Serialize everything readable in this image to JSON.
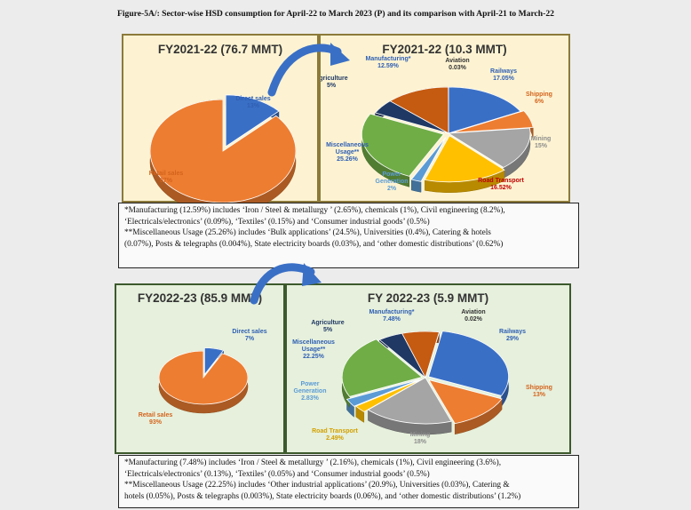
{
  "figure_title": "Figure-5A/: Sector-wise HSD consumption for April-22 to March 2023 (P) and its comparison with April-21 to March-22",
  "colors": {
    "direct_sales": "#3a6fc6",
    "retail_sales": "#ed7d31",
    "railways": "#3a6fc6",
    "shipping": "#ed7d31",
    "mining": "#a5a5a5",
    "road_transport": "#ffc000",
    "power_generation": "#5b9bd5",
    "miscellaneous": "#70ad47",
    "agriculture": "#1f3864",
    "manufacturing": "#c55a11",
    "aviation": "#f2f2f2"
  },
  "chart_data": [
    {
      "type": "pie",
      "title": "FY2021-22 (76.7 MMT)",
      "slices": [
        {
          "key": "direct_sales",
          "name": "Direct sales",
          "value_label": "13%",
          "value": 13
        },
        {
          "key": "retail_sales",
          "name": "Retail sales",
          "value_label": "87%",
          "value": 87
        }
      ]
    },
    {
      "type": "pie",
      "title": "FY2021-22 (10.3 MMT)",
      "slices": [
        {
          "key": "railways",
          "name": "Railways",
          "value_label": "17.05%",
          "value": 17.05
        },
        {
          "key": "shipping",
          "name": "Shipping",
          "value_label": "6%",
          "value": 6
        },
        {
          "key": "mining",
          "name": "Mining",
          "value_label": "15%",
          "value": 15
        },
        {
          "key": "road_transport",
          "name": "Road Transport",
          "value_label": "16.52%",
          "value": 16.52
        },
        {
          "key": "power_generation",
          "name": "Power Generation",
          "value_label": "2%",
          "value": 2
        },
        {
          "key": "miscellaneous",
          "name": "Miscellaneous Usage**",
          "value_label": "25.26%",
          "value": 25.26
        },
        {
          "key": "agriculture",
          "name": "Agriculture",
          "value_label": "5%",
          "value": 5
        },
        {
          "key": "manufacturing",
          "name": "Manufacturing*",
          "value_label": "12.59%",
          "value": 12.59
        },
        {
          "key": "aviation",
          "name": "Aviation",
          "value_label": "0.03%",
          "value": 0.03
        }
      ]
    },
    {
      "type": "pie",
      "title": "FY2022-23 (85.9 MMT)",
      "slices": [
        {
          "key": "direct_sales",
          "name": "Direct sales",
          "value_label": "7%",
          "value": 7
        },
        {
          "key": "retail_sales",
          "name": "Retail sales",
          "value_label": "93%",
          "value": 93
        }
      ]
    },
    {
      "type": "pie",
      "title": "FY 2022-23 (5.9 MMT)",
      "slices": [
        {
          "key": "railways",
          "name": "Railways",
          "value_label": "29%",
          "value": 29
        },
        {
          "key": "shipping",
          "name": "Shipping",
          "value_label": "13%",
          "value": 13
        },
        {
          "key": "mining",
          "name": "Mining",
          "value_label": "18%",
          "value": 18
        },
        {
          "key": "road_transport",
          "name": "Road Transport",
          "value_label": "2.49%",
          "value": 2.49
        },
        {
          "key": "power_generation",
          "name": "Power Generation",
          "value_label": "2.83%",
          "value": 2.83
        },
        {
          "key": "miscellaneous",
          "name": "Miscellaneous Usage**",
          "value_label": "22.25%",
          "value": 22.25
        },
        {
          "key": "agriculture",
          "name": "Agriculture",
          "value_label": "5%",
          "value": 5
        },
        {
          "key": "manufacturing",
          "name": "Manufacturing*",
          "value_label": "7.48%",
          "value": 7.48
        },
        {
          "key": "aviation",
          "name": "Aviation",
          "value_label": "0.02%",
          "value": 0.02
        }
      ]
    }
  ],
  "notes_2021": [
    "*Manufacturing (12.59%)  includes ‘Iron / Steel & metallurgy ’ (2.65%), chemicals (1%), Civil engineering (8.2%),",
    "‘Electricals/electronics’ (0.09%), ‘Textiles’ (0.15%) and ‘Consumer industrial goods’ (0.5%)",
    "**Miscellaneous Usage (25.26%) includes ‘Bulk applications’ (24.5%),  Universities (0.4%), Catering & hotels",
    "(0.07%), Posts & telegraphs (0.004%), State electricity boards (0.03%), and ‘other domestic distributions’ (0.62%)"
  ],
  "notes_2022": [
    "*Manufacturing (7.48%)  includes ‘Iron / Steel & metallurgy ’ (2.16%), chemicals (1%), Civil engineering (3.6%),",
    "‘Electricals/electronics’ (0.13%), ‘Textiles’ (0.05%) and ‘Consumer industrial goods’ (0.5%)",
    "**Miscellaneous Usage (22.25%)  includes ‘Other industrial applications’ (20.9%),  Universities (0.03%), Catering &",
    "hotels (0.05%), Posts & telegraphs (0.003%), State electricity boards (0.06%), and ‘other domestic distributions’ (1.2%)"
  ]
}
